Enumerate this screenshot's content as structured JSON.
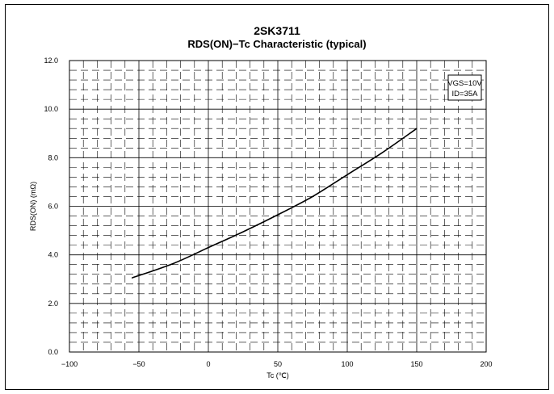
{
  "header": {
    "title": "2SK3711",
    "subtitle": "RDS(ON)−Tc Characteristic (typical)"
  },
  "chart_data": {
    "type": "line",
    "title": "2SK3711",
    "subtitle": "RDS(ON)−Tc Characteristic (typical)",
    "xlabel": "Tc (℃)",
    "ylabel": "RDS(ON) (mΩ)",
    "xlim": [
      -100,
      200
    ],
    "ylim": [
      0.0,
      12.0
    ],
    "x_ticks": [
      "−100",
      "−50",
      "0",
      "50",
      "100",
      "150",
      "200"
    ],
    "y_ticks": [
      "0.0",
      "2.0",
      "4.0",
      "6.0",
      "8.0",
      "10.0",
      "12.0"
    ],
    "grid": true,
    "legend_position": "top-right",
    "annotation": [
      "VGS=10V",
      "ID=35A"
    ],
    "series": [
      {
        "x": [
          -55,
          -25,
          0,
          25,
          50,
          75,
          100,
          125,
          150
        ],
        "values": [
          3.05,
          3.65,
          4.3,
          4.95,
          5.65,
          6.4,
          7.3,
          8.2,
          9.2
        ]
      }
    ]
  }
}
